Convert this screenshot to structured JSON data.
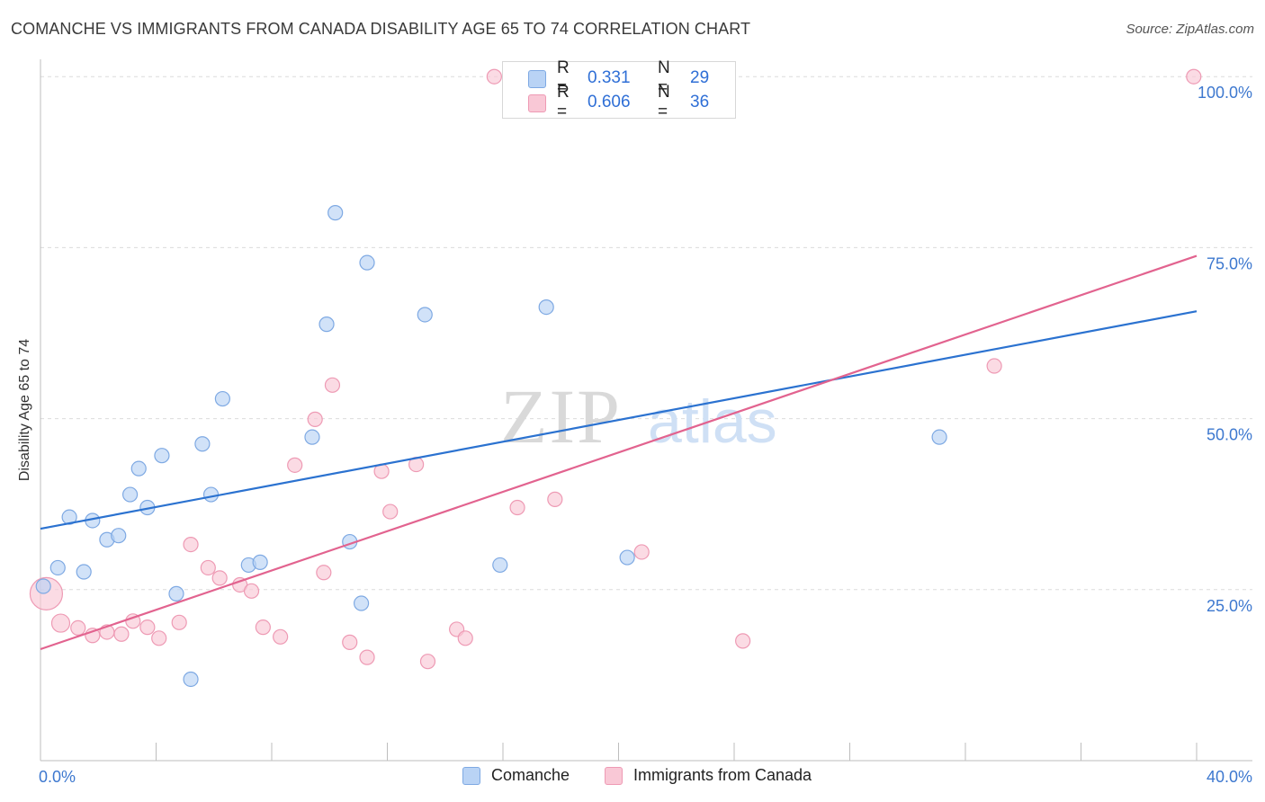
{
  "title": "COMANCHE VS IMMIGRANTS FROM CANADA DISABILITY AGE 65 TO 74 CORRELATION CHART",
  "source": "Source: ZipAtlas.com",
  "watermark": {
    "zip": "ZIP",
    "atlas": "atlas"
  },
  "legend": {
    "r_label": "R =",
    "n_label": "N =",
    "series": [
      {
        "name": "Comanche",
        "r": "0.331",
        "n": "29",
        "fill": "#b9d3f5",
        "stroke": "#7ea9e3"
      },
      {
        "name": "Immigrants from Canada",
        "r": "0.606",
        "n": "36",
        "fill": "#f9c8d6",
        "stroke": "#ee9ab4"
      }
    ]
  },
  "colors": {
    "blue_line": "#2b72d0",
    "pink_line": "#e2638f",
    "axis_text": "#3d78cf",
    "grid": "#dcdcdc"
  },
  "chart_data": {
    "type": "scatter",
    "title": "COMANCHE VS IMMIGRANTS FROM CANADA DISABILITY AGE 65 TO 74 CORRELATION CHART",
    "xlabel": "",
    "ylabel": "Disability Age 65 to 74",
    "xlim": [
      0,
      40
    ],
    "ylim": [
      0,
      102
    ],
    "x_tick_labels": [
      "0.0%",
      "40.0%"
    ],
    "y_ticks": [
      25,
      50,
      75,
      100
    ],
    "y_tick_labels": [
      "25.0%",
      "50.0%",
      "75.0%",
      "100.0%"
    ],
    "grid": true,
    "legend_position": "top-center",
    "series": [
      {
        "name": "Comanche",
        "color": "#7ea9e3",
        "points": [
          [
            0.1,
            25.5
          ],
          [
            0.6,
            28.2
          ],
          [
            1.0,
            35.6
          ],
          [
            1.5,
            27.6
          ],
          [
            1.8,
            35.1
          ],
          [
            2.3,
            32.3
          ],
          [
            2.7,
            32.9
          ],
          [
            3.1,
            38.9
          ],
          [
            3.4,
            42.7
          ],
          [
            3.7,
            37.0
          ],
          [
            4.2,
            44.6
          ],
          [
            4.7,
            24.4
          ],
          [
            5.2,
            11.9
          ],
          [
            5.6,
            46.3
          ],
          [
            5.9,
            38.9
          ],
          [
            6.3,
            52.9
          ],
          [
            7.2,
            28.6
          ],
          [
            7.6,
            29.0
          ],
          [
            9.4,
            47.3
          ],
          [
            9.9,
            63.8
          ],
          [
            10.2,
            80.1
          ],
          [
            10.7,
            32.0
          ],
          [
            11.1,
            23.0
          ],
          [
            11.3,
            72.8
          ],
          [
            13.3,
            65.2
          ],
          [
            15.9,
            28.6
          ],
          [
            17.5,
            66.3
          ],
          [
            20.3,
            29.7
          ],
          [
            31.1,
            47.3
          ]
        ],
        "trend": {
          "x": [
            0,
            40
          ],
          "y": [
            33.9,
            65.7
          ]
        }
      },
      {
        "name": "Immigrants from Canada",
        "color": "#ee9ab4",
        "points": [
          [
            0.2,
            24.4
          ],
          [
            0.7,
            20.1
          ],
          [
            1.3,
            19.4
          ],
          [
            1.8,
            18.3
          ],
          [
            2.3,
            18.8
          ],
          [
            2.8,
            18.5
          ],
          [
            3.2,
            20.4
          ],
          [
            3.7,
            19.5
          ],
          [
            4.1,
            17.9
          ],
          [
            4.8,
            20.2
          ],
          [
            5.2,
            31.6
          ],
          [
            5.8,
            28.2
          ],
          [
            6.2,
            26.7
          ],
          [
            6.9,
            25.7
          ],
          [
            7.3,
            24.8
          ],
          [
            7.7,
            19.5
          ],
          [
            8.3,
            18.1
          ],
          [
            8.8,
            43.2
          ],
          [
            9.5,
            49.9
          ],
          [
            9.8,
            27.5
          ],
          [
            10.1,
            54.9
          ],
          [
            10.7,
            17.3
          ],
          [
            11.3,
            15.1
          ],
          [
            11.8,
            42.3
          ],
          [
            12.1,
            36.4
          ],
          [
            13.0,
            43.3
          ],
          [
            13.4,
            14.5
          ],
          [
            14.4,
            19.2
          ],
          [
            14.7,
            17.9
          ],
          [
            15.7,
            100.0
          ],
          [
            16.5,
            37.0
          ],
          [
            17.8,
            38.2
          ],
          [
            20.8,
            30.5
          ],
          [
            24.3,
            17.5
          ],
          [
            33.0,
            57.7
          ],
          [
            39.9,
            100.0
          ]
        ],
        "trend": {
          "x": [
            0,
            40
          ],
          "y": [
            16.3,
            73.8
          ]
        }
      }
    ]
  }
}
